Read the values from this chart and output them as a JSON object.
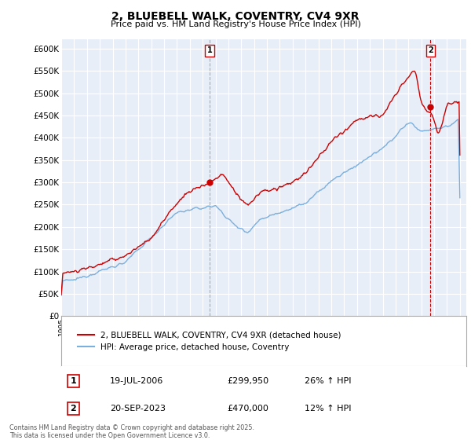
{
  "title": "2, BLUEBELL WALK, COVENTRY, CV4 9XR",
  "subtitle": "Price paid vs. HM Land Registry's House Price Index (HPI)",
  "ylim": [
    0,
    620000
  ],
  "yticks": [
    0,
    50000,
    100000,
    150000,
    200000,
    250000,
    300000,
    350000,
    400000,
    450000,
    500000,
    550000,
    600000
  ],
  "xlim_start": 1995.0,
  "xlim_end": 2026.5,
  "bg_color": "#ffffff",
  "plot_bg_color": "#e8eef8",
  "grid_color": "#ffffff",
  "red_color": "#cc0000",
  "blue_color": "#7aafde",
  "marker1_date": 2006.54,
  "marker1_value": 299950,
  "marker1_label": "1",
  "marker2_date": 2023.72,
  "marker2_value": 470000,
  "marker2_label": "2",
  "legend_line1": "2, BLUEBELL WALK, COVENTRY, CV4 9XR (detached house)",
  "legend_line2": "HPI: Average price, detached house, Coventry",
  "table_rows": [
    {
      "num": "1",
      "date": "19-JUL-2006",
      "price": "£299,950",
      "hpi": "26% ↑ HPI"
    },
    {
      "num": "2",
      "date": "20-SEP-2023",
      "price": "£470,000",
      "hpi": "12% ↑ HPI"
    }
  ],
  "footnote": "Contains HM Land Registry data © Crown copyright and database right 2025.\nThis data is licensed under the Open Government Licence v3.0."
}
